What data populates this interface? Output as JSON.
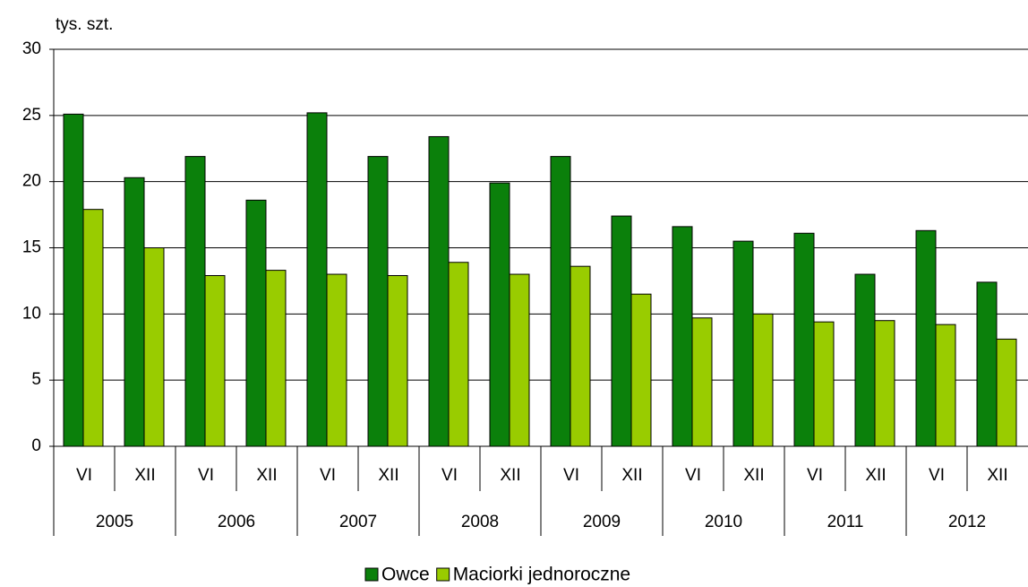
{
  "chart_data": {
    "type": "bar",
    "y_label": "tys. szt.",
    "categories": [
      "VI",
      "XII",
      "VI",
      "XII",
      "VI",
      "XII",
      "VI",
      "XII",
      "VI",
      "XII",
      "VI",
      "XII",
      "VI",
      "XII",
      "VI",
      "XII"
    ],
    "category_groups": [
      "2005",
      "2006",
      "2007",
      "2008",
      "2009",
      "2010",
      "2011",
      "2012"
    ],
    "series": [
      {
        "name": "Owce",
        "color": "#0b800b",
        "values": [
          25.1,
          20.3,
          21.9,
          18.6,
          25.2,
          21.9,
          23.4,
          19.9,
          21.9,
          17.4,
          16.6,
          15.5,
          16.1,
          13.0,
          16.3,
          12.4
        ]
      },
      {
        "name": "Maciorki jednoroczne",
        "color": "#99cc00",
        "values": [
          17.9,
          15.0,
          12.9,
          13.3,
          13.0,
          12.9,
          13.9,
          13.0,
          13.6,
          11.5,
          9.7,
          10.0,
          9.4,
          9.5,
          9.2,
          8.1
        ]
      }
    ],
    "ylim": [
      0,
      30
    ],
    "yticks": [
      0,
      5,
      10,
      15,
      20,
      25,
      30
    ],
    "grid": true,
    "legend": "bottom"
  }
}
